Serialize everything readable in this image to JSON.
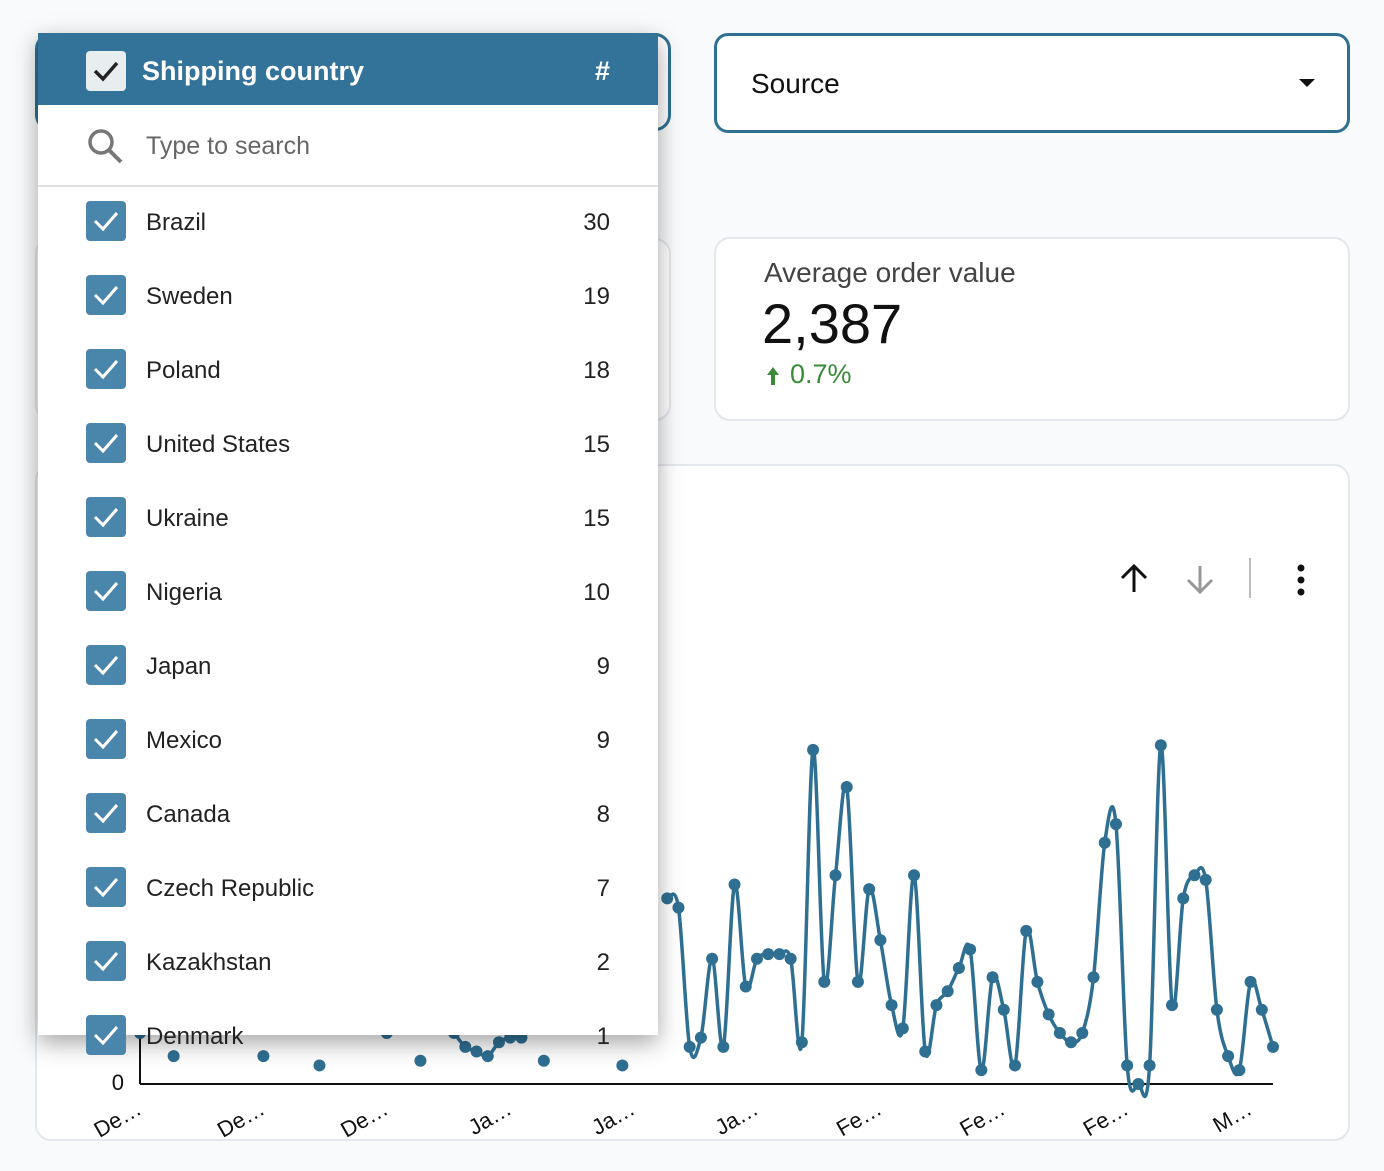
{
  "filters": {
    "shipping_country": {
      "title": "Shipping country",
      "count_header": "#",
      "search_placeholder": "Type to search",
      "items": [
        {
          "label": "Brazil",
          "count": 30
        },
        {
          "label": "Sweden",
          "count": 19
        },
        {
          "label": "Poland",
          "count": 18
        },
        {
          "label": "United States",
          "count": 15
        },
        {
          "label": "Ukraine",
          "count": 15
        },
        {
          "label": "Nigeria",
          "count": 10
        },
        {
          "label": "Japan",
          "count": 9
        },
        {
          "label": "Mexico",
          "count": 9
        },
        {
          "label": "Canada",
          "count": 8
        },
        {
          "label": "Czech Republic",
          "count": 7
        },
        {
          "label": "Kazakhstan",
          "count": 2
        },
        {
          "label": "Denmark",
          "count": 1
        }
      ]
    },
    "source": {
      "label": "Source"
    }
  },
  "scorecard": {
    "title": "Average order value",
    "value": "2,387",
    "change": "0.7%"
  },
  "chart_data": {
    "type": "line",
    "categories": [
      "De…",
      null,
      null,
      null,
      null,
      null,
      null,
      null,
      null,
      null,
      null,
      "De…",
      null,
      null,
      null,
      null,
      null,
      null,
      null,
      null,
      null,
      null,
      "De…",
      null,
      null,
      null,
      null,
      null,
      null,
      null,
      null,
      null,
      null,
      "Ja…",
      null,
      null,
      null,
      null,
      null,
      null,
      null,
      null,
      null,
      null,
      "Ja…",
      null,
      null,
      null,
      null,
      null,
      null,
      null,
      null,
      null,
      null,
      "Ja…",
      null,
      null,
      null,
      null,
      null,
      null,
      null,
      null,
      null,
      null,
      "Fe…",
      null,
      null,
      null,
      null,
      null,
      null,
      null,
      null,
      null,
      null,
      "Fe…",
      null,
      null,
      null,
      null,
      null,
      null,
      null,
      null,
      null,
      null,
      "Fe…",
      null,
      null,
      null,
      null,
      null,
      null,
      null,
      null,
      null,
      null,
      "M…",
      null,
      null
    ],
    "series": [
      {
        "color": "#2f6f92",
        "values": [
          11,
          null,
          null,
          6,
          null,
          null,
          null,
          null,
          null,
          null,
          null,
          6,
          null,
          null,
          null,
          null,
          4,
          null,
          null,
          null,
          null,
          null,
          11,
          null,
          null,
          5,
          null,
          null,
          11,
          8,
          7,
          6,
          9,
          10,
          10,
          null,
          5,
          null,
          null,
          null,
          null,
          null,
          null,
          4,
          null,
          null,
          null,
          40,
          38,
          8,
          10,
          27,
          8,
          43,
          21,
          27,
          28,
          28,
          27,
          9,
          72,
          22,
          45,
          64,
          22,
          42,
          31,
          17,
          12,
          45,
          7,
          17,
          20,
          25,
          29,
          3,
          23,
          16,
          4,
          33,
          22,
          15,
          11,
          9,
          11,
          23,
          52,
          56,
          4,
          0,
          4,
          73,
          17,
          40,
          45,
          44,
          16,
          6,
          3,
          22,
          16,
          8
        ]
      }
    ],
    "ylim": [
      0,
      100
    ],
    "yticks": [
      0
    ]
  }
}
